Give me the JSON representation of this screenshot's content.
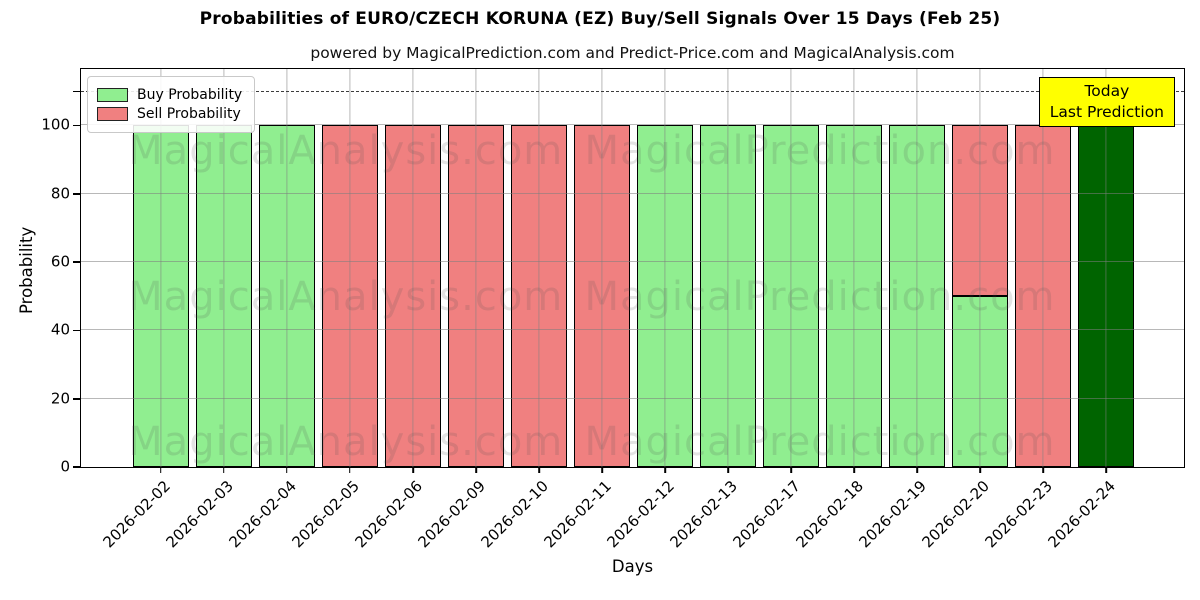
{
  "subtitle": "powered by MagicalPrediction.com and Predict-Price.com and MagicalAnalysis.com",
  "watermarks": {
    "left": "MagicalAnalysis.com",
    "right": "MagicalPrediction.com"
  },
  "annotation": {
    "line1": "Today",
    "line2": "Last Prediction",
    "bg": "#ffff00"
  },
  "legend": [
    {
      "label": "Buy Probability",
      "color": "#90ee90"
    },
    {
      "label": "Sell Probability",
      "color": "#f08080"
    }
  ],
  "colors": {
    "buy": "#90ee90",
    "sell": "#f08080",
    "today_bar": "#006400",
    "grid": "#b0b0b0",
    "annotation_bg": "#ffff00"
  },
  "chart_data": {
    "type": "bar",
    "stacked": true,
    "title": "Probabilities of EURO/CZECH KORUNA (EZ) Buy/Sell Signals Over 15 Days (Feb 25)",
    "xlabel": "Days",
    "ylabel": "Probability",
    "categories": [
      "2026-02-02",
      "2026-02-03",
      "2026-02-04",
      "2026-02-05",
      "2026-02-06",
      "2026-02-09",
      "2026-02-10",
      "2026-02-11",
      "2026-02-12",
      "2026-02-13",
      "2026-02-17",
      "2026-02-18",
      "2026-02-19",
      "2026-02-20",
      "2026-02-23",
      "2026-02-24"
    ],
    "series": [
      {
        "name": "Buy Probability",
        "color": "#90ee90",
        "values": [
          100,
          100,
          100,
          0,
          0,
          0,
          0,
          0,
          100,
          100,
          100,
          100,
          100,
          50,
          0,
          0
        ]
      },
      {
        "name": "Sell Probability",
        "color": "#f08080",
        "values": [
          0,
          0,
          0,
          100,
          100,
          100,
          100,
          100,
          0,
          0,
          0,
          0,
          0,
          50,
          100,
          0
        ]
      },
      {
        "name": "Today Last Prediction",
        "color": "#006400",
        "values": [
          0,
          0,
          0,
          0,
          0,
          0,
          0,
          0,
          0,
          0,
          0,
          0,
          0,
          0,
          0,
          100
        ]
      }
    ],
    "yticks": [
      0,
      20,
      40,
      60,
      80,
      100
    ],
    "extra_yticks": [
      110
    ],
    "ylim": [
      0,
      116.5
    ],
    "dashed_line_y": 110,
    "grid": true,
    "legend_position": "upper left"
  }
}
